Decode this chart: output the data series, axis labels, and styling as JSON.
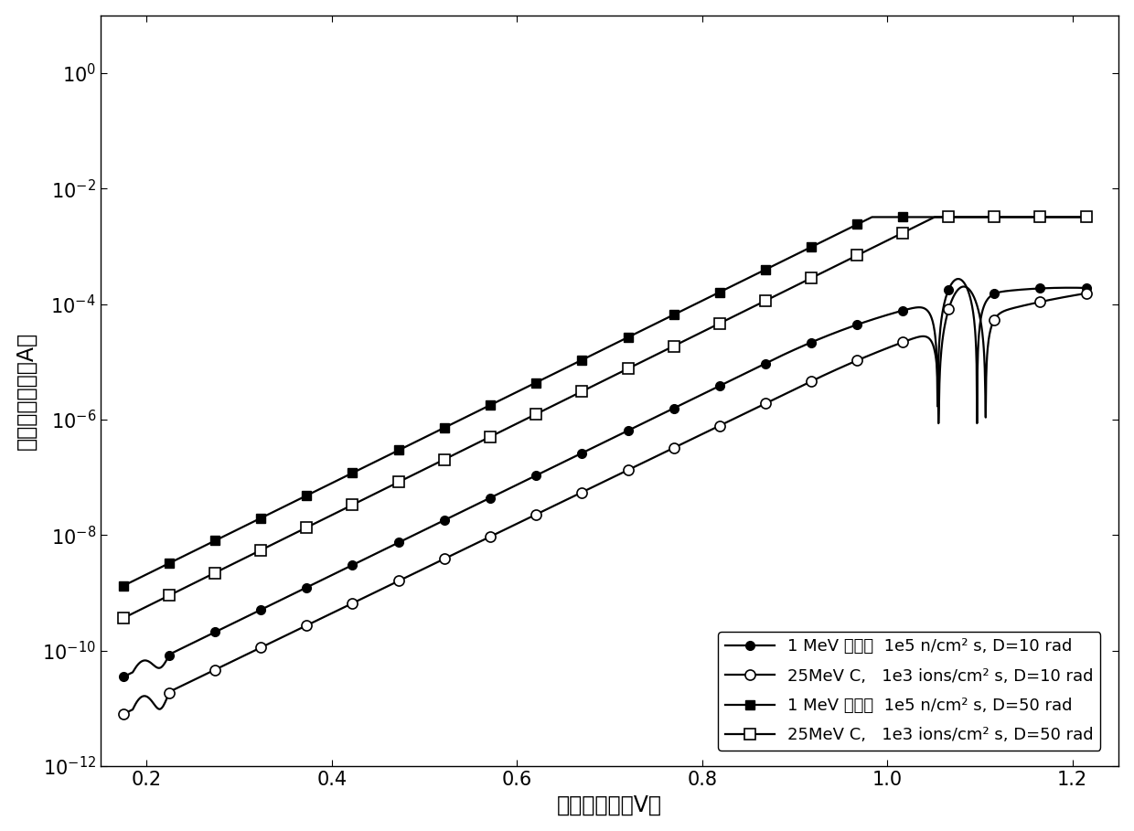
{
  "xlabel": "发射结电压（V）",
  "ylabel": "过剩基极电流（A）",
  "xlim": [
    0.15,
    1.25
  ],
  "ylim": [
    1e-12,
    10.0
  ],
  "legend_labels": [
    "1 MeV 中子，  1e5 n/cm² s, D=10 rad",
    "25MeV C,   1e3 ions/cm² s, D=10 rad",
    "1 MeV 中子，  1e5 n/cm² s, D=50 rad",
    "25MeV C,   1e3 ions/cm² s, D=50 rad"
  ],
  "xticks": [
    0.2,
    0.4,
    0.6,
    0.8,
    1.0,
    1.2
  ],
  "fontsize_label": 17,
  "fontsize_tick": 15,
  "fontsize_legend": 13,
  "lw": 1.6,
  "markersize": 7
}
